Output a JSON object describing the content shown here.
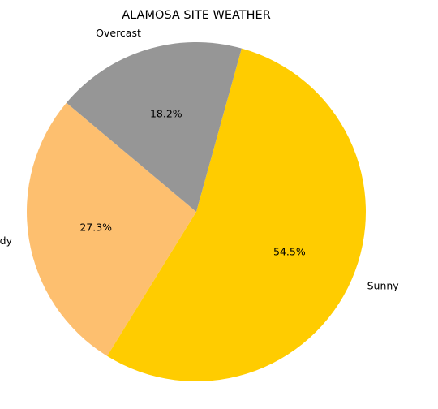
{
  "chart_data": {
    "type": "pie",
    "title": "ALAMOSA SITE WEATHER",
    "slices": [
      {
        "label": "Partly cloudy",
        "value": 27.3,
        "pct_label": "27.3%",
        "color": "#FDBF6F"
      },
      {
        "label": "Sunny",
        "value": 54.5,
        "pct_label": "54.5%",
        "color": "#FFCC00"
      },
      {
        "label": "Overcast",
        "value": 18.2,
        "pct_label": "18.2%",
        "color": "#969696"
      }
    ],
    "start_angle_deg": 140,
    "direction": "counterclockwise",
    "legend": "none"
  }
}
